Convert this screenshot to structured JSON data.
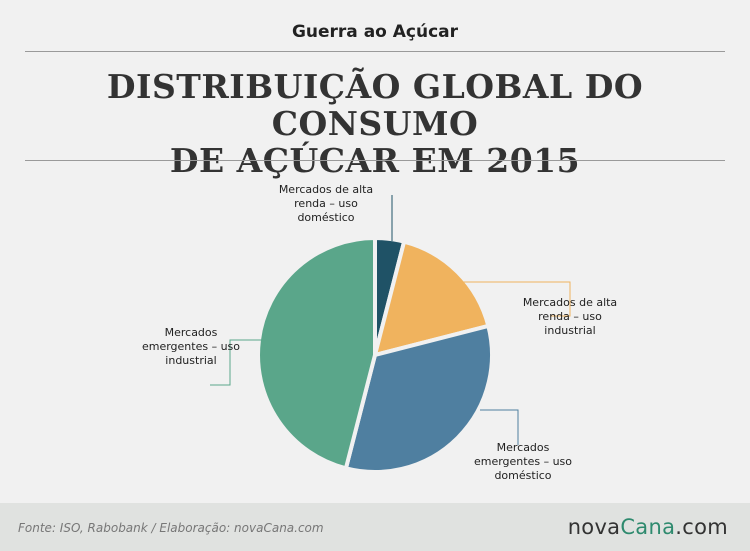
{
  "header": {
    "kicker": "Guerra ao Açúcar",
    "title_line1": "DISTRIBUIÇÃO GLOBAL DO CONSUMO",
    "title_line2": "DE AÇÚCAR EM 2015"
  },
  "chart_data": {
    "type": "pie",
    "title": "DISTRIBUIÇÃO GLOBAL DO CONSUMO DE AÇÚCAR EM 2015",
    "start_angle_deg": 0,
    "direction": "clockwise",
    "slices": [
      {
        "label": "Mercados de alta renda – uso doméstico",
        "value": 4,
        "color": "#1f5266"
      },
      {
        "label": "Mercados de alta renda – uso industrial",
        "value": 17,
        "color": "#f0b35e"
      },
      {
        "label": "Mercados emergentes – uso doméstico",
        "value": 33,
        "color": "#4f7fa0"
      },
      {
        "label": "Mercados emergentes – uso industrial",
        "value": 46,
        "color": "#5aa68a"
      }
    ],
    "labels": [
      {
        "line1": "Mercados de alta",
        "line2": "renda – uso",
        "line3": "doméstico"
      },
      {
        "line1": "Mercados de alta",
        "line2": "renda – uso",
        "line3": "industrial"
      },
      {
        "line1": "Mercados",
        "line2": "emergentes – uso",
        "line3": "doméstico"
      },
      {
        "line1": "Mercados",
        "line2": "emergentes – uso",
        "line3": "industrial"
      }
    ]
  },
  "footer": {
    "source": "Fonte: ISO, Rabobank / Elaboração: novaCana.com",
    "brand_part1": "nova",
    "brand_part2": "Cana",
    "brand_part3": ".com"
  }
}
